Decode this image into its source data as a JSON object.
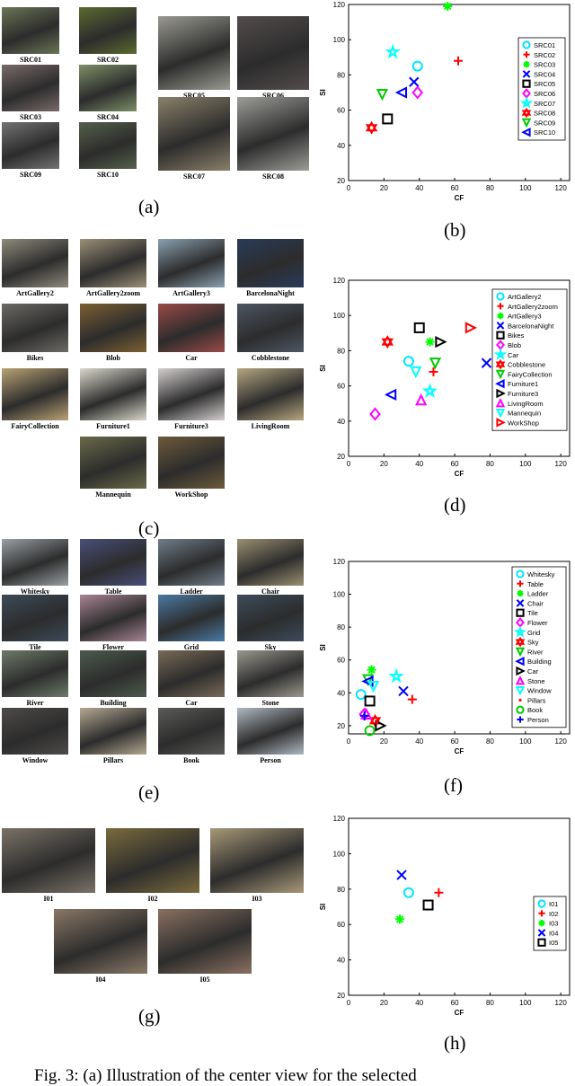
{
  "figure": {
    "caption": "Fig. 3: (a) Illustration of the center view for the selected",
    "panel_labels": {
      "a": "(a)",
      "b": "(b)",
      "c": "(c)",
      "d": "(d)",
      "e": "(e)",
      "f": "(f)",
      "g": "(g)",
      "h": "(h)"
    },
    "a": {
      "thumbs": [
        {
          "label": "SRC01",
          "hue": "#6b7456"
        },
        {
          "label": "SRC02",
          "hue": "#5c6a30"
        },
        {
          "label": "SRC03",
          "hue": "#7a6a6a"
        },
        {
          "label": "SRC04",
          "hue": "#7d8f68"
        },
        {
          "label": "SRC05",
          "hue": "#9a9a92"
        },
        {
          "label": "SRC06",
          "hue": "#534c4c"
        },
        {
          "label": "SRC07",
          "hue": "#8a806a"
        },
        {
          "label": "SRC08",
          "hue": "#9c9c98"
        },
        {
          "label": "SRC09",
          "hue": "#737373"
        },
        {
          "label": "SRC10",
          "hue": "#55604a"
        }
      ]
    },
    "c": {
      "thumbs": [
        {
          "label": "ArtGallery2",
          "hue": "#8e8a7c"
        },
        {
          "label": "ArtGallery2zoom",
          "hue": "#9b8f78"
        },
        {
          "label": "ArtGallery3",
          "hue": "#8aa0b0"
        },
        {
          "label": "BarcelonaNight",
          "hue": "#2a3b5a"
        },
        {
          "label": "Bikes",
          "hue": "#6c6a66"
        },
        {
          "label": "Blob",
          "hue": "#7d6032"
        },
        {
          "label": "Car",
          "hue": "#9a4a48"
        },
        {
          "label": "Cobblestone",
          "hue": "#4d5664"
        },
        {
          "label": "FairyCollection",
          "hue": "#b9a274"
        },
        {
          "label": "Furniture1",
          "hue": "#d9d7cc"
        },
        {
          "label": "Furniture3",
          "hue": "#d4cfcf"
        },
        {
          "label": "LivingRoom",
          "hue": "#b6a680"
        },
        {
          "label": "Mannequin",
          "hue": "#6a6a4a"
        },
        {
          "label": "WorkShop",
          "hue": "#6d5a3c"
        }
      ]
    },
    "e": {
      "thumbs": [
        {
          "label": "Whitesky",
          "hue": "#9aa0a4"
        },
        {
          "label": "Table",
          "hue": "#4a4e7a"
        },
        {
          "label": "Ladder",
          "hue": "#6f7d8a"
        },
        {
          "label": "Chair",
          "hue": "#9a8f70"
        },
        {
          "label": "Tile",
          "hue": "#3c4a58"
        },
        {
          "label": "Flower",
          "hue": "#a88494"
        },
        {
          "label": "Grid",
          "hue": "#4a7aa4"
        },
        {
          "label": "Sky",
          "hue": "#3c4c5c"
        },
        {
          "label": "River",
          "hue": "#6e7a6a"
        },
        {
          "label": "Building",
          "hue": "#4d5a4e"
        },
        {
          "label": "Car",
          "hue": "#7a6a58"
        },
        {
          "label": "Stone",
          "hue": "#9a9890"
        },
        {
          "label": "Window",
          "hue": "#4e4a48"
        },
        {
          "label": "Pillars",
          "hue": "#b4a892"
        },
        {
          "label": "Book",
          "hue": "#5a5a58"
        },
        {
          "label": "Person",
          "hue": "#b0b8c0"
        }
      ]
    },
    "g": {
      "thumbs": [
        {
          "label": "I01",
          "hue": "#7a7268"
        },
        {
          "label": "I02",
          "hue": "#7a6a3c"
        },
        {
          "label": "I03",
          "hue": "#a89878"
        },
        {
          "label": "I04",
          "hue": "#8a7866"
        },
        {
          "label": "I05",
          "hue": "#8a7060"
        }
      ]
    }
  },
  "chart_data": [
    {
      "panel": "b",
      "type": "scatter",
      "xlabel": "CF",
      "ylabel": "SI",
      "xlim": [
        0,
        125
      ],
      "ylim": [
        20,
        120
      ],
      "xticks": [
        "0",
        "20",
        "40",
        "60",
        "80",
        "100",
        "120"
      ],
      "yticks": [
        "20",
        "40",
        "60",
        "80",
        "100",
        "120"
      ],
      "legend_position": "top-right",
      "series": [
        {
          "name": "SRC01",
          "marker": "circle",
          "color": "#00e5ff",
          "x": 39,
          "y": 85
        },
        {
          "name": "SRC02",
          "marker": "plus",
          "color": "#ff0000",
          "x": 62,
          "y": 88
        },
        {
          "name": "SRC03",
          "marker": "asterisk",
          "color": "#00ff00",
          "x": 56,
          "y": 119
        },
        {
          "name": "SRC04",
          "marker": "x",
          "color": "#0000ff",
          "x": 37,
          "y": 76
        },
        {
          "name": "SRC05",
          "marker": "square",
          "color": "#000000",
          "x": 22,
          "y": 55
        },
        {
          "name": "SRC06",
          "marker": "diamond",
          "color": "#ff00ff",
          "x": 39,
          "y": 70
        },
        {
          "name": "SRC07",
          "marker": "star",
          "color": "#00ffff",
          "x": 25,
          "y": 93
        },
        {
          "name": "SRC08",
          "marker": "hexagram",
          "color": "#ff0000",
          "x": 13,
          "y": 50
        },
        {
          "name": "SRC09",
          "marker": "triangle-down",
          "color": "#00cc00",
          "x": 19,
          "y": 69
        },
        {
          "name": "SRC10",
          "marker": "triangle-left",
          "color": "#0000ff",
          "x": 30,
          "y": 70
        }
      ]
    },
    {
      "panel": "d",
      "type": "scatter",
      "xlabel": "CF",
      "ylabel": "SI",
      "xlim": [
        0,
        125
      ],
      "ylim": [
        20,
        120
      ],
      "xticks": [
        "0",
        "20",
        "40",
        "60",
        "80",
        "100",
        "120"
      ],
      "yticks": [
        "20",
        "40",
        "60",
        "80",
        "100",
        "120"
      ],
      "legend_position": "top-right",
      "series": [
        {
          "name": "ArtGallery2",
          "marker": "circle",
          "color": "#00e5ff",
          "x": 34,
          "y": 74
        },
        {
          "name": "ArtGallery2zoom",
          "marker": "plus",
          "color": "#ff0000",
          "x": 48,
          "y": 68
        },
        {
          "name": "ArtGallery3",
          "marker": "asterisk",
          "color": "#00ff00",
          "x": 46,
          "y": 85
        },
        {
          "name": "BarcelonaNight",
          "marker": "x",
          "color": "#0000ff",
          "x": 78,
          "y": 73
        },
        {
          "name": "Bikes",
          "marker": "square",
          "color": "#000000",
          "x": 40,
          "y": 93
        },
        {
          "name": "Blob",
          "marker": "diamond",
          "color": "#ff00ff",
          "x": 15,
          "y": 44
        },
        {
          "name": "Car",
          "marker": "star",
          "color": "#00ffff",
          "x": 46,
          "y": 57
        },
        {
          "name": "Cobblestone",
          "marker": "hexagram",
          "color": "#ff0000",
          "x": 22,
          "y": 85
        },
        {
          "name": "FairyCollection",
          "marker": "triangle-down",
          "color": "#00cc00",
          "x": 49,
          "y": 73
        },
        {
          "name": "Furniture1",
          "marker": "triangle-left",
          "color": "#0000ff",
          "x": 24,
          "y": 55
        },
        {
          "name": "Furniture3",
          "marker": "triangle-right",
          "color": "#000000",
          "x": 52,
          "y": 85
        },
        {
          "name": "LivingRoom",
          "marker": "triangle-up",
          "color": "#ff00ff",
          "x": 41,
          "y": 52
        },
        {
          "name": "Mannequin",
          "marker": "triangle-down",
          "color": "#00ffff",
          "x": 38,
          "y": 68
        },
        {
          "name": "WorkShop",
          "marker": "triangle-right",
          "color": "#ff0000",
          "x": 69,
          "y": 93
        }
      ]
    },
    {
      "panel": "f",
      "type": "scatter",
      "xlabel": "CF",
      "ylabel": "SI",
      "xlim": [
        0,
        125
      ],
      "ylim": [
        15,
        120
      ],
      "xticks": [
        "0",
        "20",
        "40",
        "60",
        "80",
        "100",
        "120"
      ],
      "yticks": [
        "20",
        "40",
        "60",
        "80",
        "100",
        "120"
      ],
      "legend_position": "top-right",
      "series": [
        {
          "name": "Whitesky",
          "marker": "circle",
          "color": "#00e5ff",
          "x": 7,
          "y": 39
        },
        {
          "name": "Table",
          "marker": "plus",
          "color": "#ff0000",
          "x": 36,
          "y": 36
        },
        {
          "name": "Ladder",
          "marker": "asterisk",
          "color": "#00ff00",
          "x": 13,
          "y": 54
        },
        {
          "name": "Chair",
          "marker": "x",
          "color": "#0000ff",
          "x": 31,
          "y": 41
        },
        {
          "name": "Tile",
          "marker": "square",
          "color": "#000000",
          "x": 12,
          "y": 35
        },
        {
          "name": "Flower",
          "marker": "diamond",
          "color": "#ff00ff",
          "x": 9,
          "y": 27
        },
        {
          "name": "Grid",
          "marker": "star",
          "color": "#00ffff",
          "x": 27,
          "y": 50
        },
        {
          "name": "Sky",
          "marker": "hexagram",
          "color": "#ff0000",
          "x": 15,
          "y": 23
        },
        {
          "name": "River",
          "marker": "triangle-down",
          "color": "#00cc00",
          "x": 11,
          "y": 48
        },
        {
          "name": "Building",
          "marker": "triangle-left",
          "color": "#0000ff",
          "x": 11,
          "y": 47
        },
        {
          "name": "Car",
          "marker": "triangle-right",
          "color": "#000000",
          "x": 18,
          "y": 20
        },
        {
          "name": "Stone",
          "marker": "triangle-up",
          "color": "#ff00ff",
          "x": 10,
          "y": 27
        },
        {
          "name": "Window",
          "marker": "triangle-down",
          "color": "#00ffff",
          "x": 14,
          "y": 44
        },
        {
          "name": "Pillars",
          "marker": "dot",
          "color": "#ff0000",
          "x": 16,
          "y": 22
        },
        {
          "name": "Book",
          "marker": "circle",
          "color": "#00cc00",
          "x": 12,
          "y": 17
        },
        {
          "name": "Person",
          "marker": "plus",
          "color": "#0000ff",
          "x": 9,
          "y": 26
        }
      ]
    },
    {
      "panel": "h",
      "type": "scatter",
      "xlabel": "CF",
      "ylabel": "SI",
      "xlim": [
        0,
        125
      ],
      "ylim": [
        20,
        120
      ],
      "xticks": [
        "0",
        "20",
        "40",
        "60",
        "80",
        "100",
        "120"
      ],
      "yticks": [
        "20",
        "40",
        "60",
        "80",
        "100",
        "120"
      ],
      "legend_position": "right",
      "series": [
        {
          "name": "I01",
          "marker": "circle",
          "color": "#00e5ff",
          "x": 34,
          "y": 78
        },
        {
          "name": "I02",
          "marker": "plus",
          "color": "#ff0000",
          "x": 51,
          "y": 78
        },
        {
          "name": "I03",
          "marker": "asterisk",
          "color": "#00ff00",
          "x": 29,
          "y": 63
        },
        {
          "name": "I04",
          "marker": "x",
          "color": "#0000ff",
          "x": 30,
          "y": 88
        },
        {
          "name": "I05",
          "marker": "square",
          "color": "#000000",
          "x": 45,
          "y": 71
        }
      ]
    }
  ]
}
